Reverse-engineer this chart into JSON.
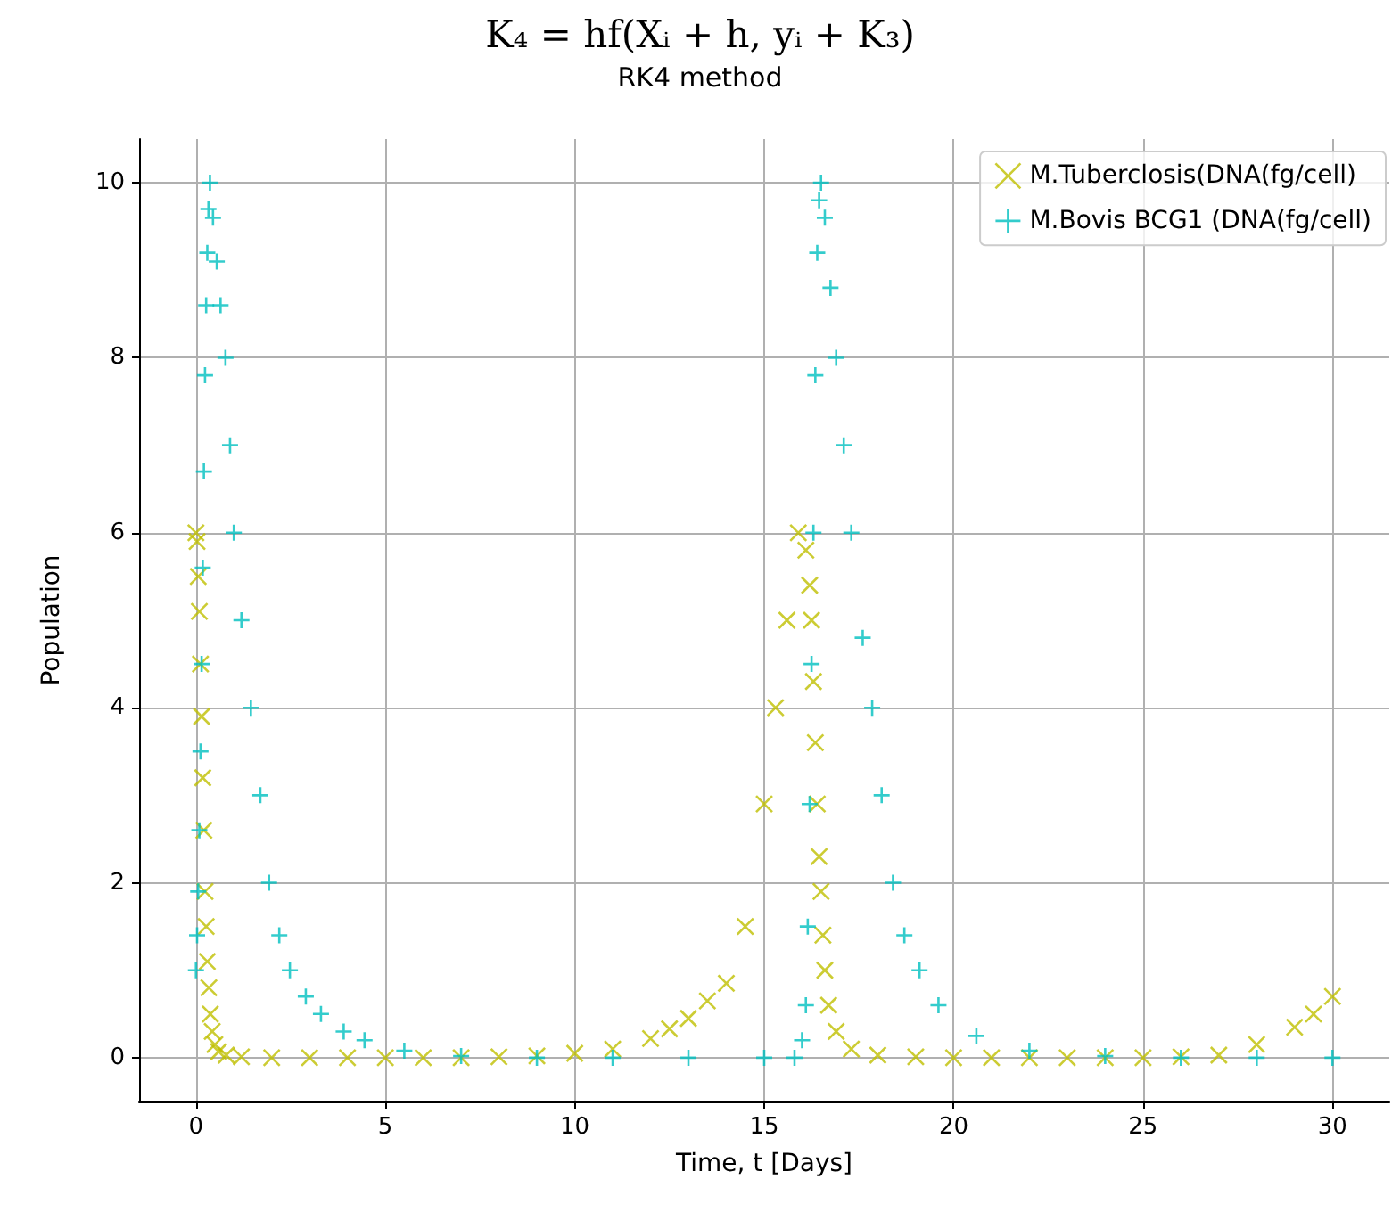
{
  "chart_data": {
    "type": "scatter",
    "title": "K₄ = hf(Xᵢ + h, yᵢ + K₃)",
    "subtitle": "RK4 method",
    "xlabel": "Time, t [Days]",
    "ylabel": "Population",
    "xlim": [
      -1.5,
      31.5
    ],
    "xticks": [
      0,
      5,
      10,
      15,
      20,
      25,
      30
    ],
    "ylim": [
      -0.5,
      10.5
    ],
    "yticks": [
      0,
      2,
      4,
      6,
      8,
      10
    ],
    "grid": true,
    "legend": "top right",
    "series": [
      {
        "name": "M.Tuberclosis(DNA(fg/cell)",
        "color": "#bfbf00",
        "marker": "cross",
        "x": [
          0,
          0.03,
          0.06,
          0.09,
          0.12,
          0.15,
          0.18,
          0.21,
          0.24,
          0.27,
          0.3,
          0.34,
          0.38,
          0.43,
          0.5,
          0.6,
          0.8,
          1.2,
          2,
          3,
          4,
          5,
          6,
          7,
          8,
          9,
          10,
          11,
          12,
          12.5,
          13,
          13.5,
          14,
          14.5,
          15,
          15.3,
          15.6,
          15.9,
          16.1,
          16.2,
          16.25,
          16.3,
          16.35,
          16.4,
          16.45,
          16.5,
          16.55,
          16.6,
          16.7,
          16.9,
          17.3,
          18,
          19,
          20,
          21,
          22,
          23,
          24,
          25,
          26,
          27,
          28,
          29,
          29.5,
          30
        ],
        "values": [
          6,
          5.9,
          5.5,
          5.1,
          4.5,
          3.9,
          3.2,
          2.6,
          1.9,
          1.5,
          1.1,
          0.8,
          0.5,
          0.3,
          0.15,
          0.07,
          0.03,
          0.01,
          0,
          0,
          0,
          0,
          0,
          0,
          0.01,
          0.02,
          0.05,
          0.1,
          0.22,
          0.33,
          0.45,
          0.65,
          0.85,
          1.5,
          2.9,
          4,
          5,
          6,
          5.8,
          5.4,
          5,
          4.3,
          3.6,
          2.9,
          2.3,
          1.9,
          1.4,
          1,
          0.6,
          0.3,
          0.1,
          0.03,
          0.01,
          0,
          0,
          0,
          0,
          0,
          0,
          0.01,
          0.03,
          0.15,
          0.35,
          0.5,
          0.7
        ]
      },
      {
        "name": "M.Bovis BCG1 (DNA(fg/cell)",
        "color": "#00bfbf",
        "marker": "plus",
        "x": [
          0,
          0.03,
          0.06,
          0.09,
          0.12,
          0.15,
          0.18,
          0.21,
          0.24,
          0.27,
          0.3,
          0.33,
          0.37,
          0.45,
          0.55,
          0.65,
          0.78,
          0.9,
          1,
          1.2,
          1.45,
          1.7,
          1.93,
          2.2,
          2.48,
          2.9,
          3.3,
          3.9,
          4.45,
          5.5,
          7,
          9,
          11,
          13,
          15,
          15.8,
          16,
          16.1,
          16.15,
          16.2,
          16.25,
          16.3,
          16.35,
          16.4,
          16.45,
          16.5,
          16.6,
          16.75,
          16.9,
          17.1,
          17.3,
          17.6,
          17.85,
          18.1,
          18.4,
          18.7,
          19.1,
          19.6,
          20.6,
          22,
          24,
          26,
          28,
          30
        ],
        "values": [
          1,
          1.4,
          1.9,
          2.6,
          3.5,
          4.5,
          5.6,
          6.7,
          7.8,
          8.6,
          9.2,
          9.7,
          10,
          9.6,
          9.1,
          8.6,
          8,
          7,
          6,
          5,
          4,
          3,
          2,
          1.4,
          1,
          0.7,
          0.5,
          0.3,
          0.2,
          0.08,
          0.02,
          0,
          0,
          0,
          0,
          0,
          0.2,
          0.6,
          1.5,
          2.9,
          4.5,
          6,
          7.8,
          9.2,
          9.8,
          10,
          9.6,
          8.8,
          8,
          7,
          6,
          4.8,
          4,
          3,
          2,
          1.4,
          1,
          0.6,
          0.25,
          0.08,
          0.02,
          0,
          0,
          0
        ]
      }
    ]
  }
}
